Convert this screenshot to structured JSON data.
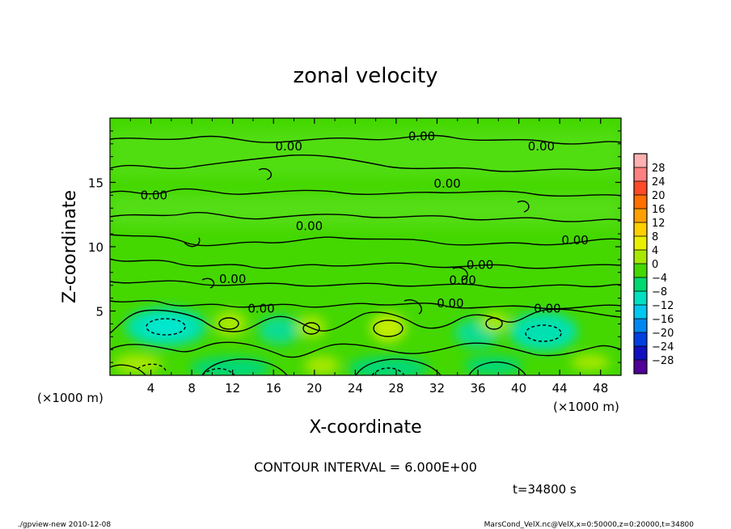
{
  "chart_data": {
    "type": "heatmap",
    "title": "zonal velocity",
    "xlabel": "X-coordinate",
    "ylabel": "Z-coordinate",
    "x_unit_label": "(×1000 m)",
    "xlim": [
      0,
      50
    ],
    "ylim": [
      0,
      20
    ],
    "x_ticks": [
      "4",
      "8",
      "12",
      "16",
      "20",
      "24",
      "28",
      "32",
      "36",
      "40",
      "44",
      "48"
    ],
    "y_ticks": [
      "5",
      "10",
      "15"
    ],
    "contour_label": "0.00",
    "contour_interval_text": "CONTOUR INTERVAL = 6.000E+00",
    "time_text": "t=34800 s",
    "colorbar": {
      "levels": [
        "28",
        "24",
        "20",
        "16",
        "12",
        "8",
        "4",
        "0",
        "−4",
        "−8",
        "−12",
        "−16",
        "−20",
        "−24",
        "−28"
      ],
      "colors": [
        "#ff8080",
        "#ff4a2a",
        "#ff7000",
        "#ffa000",
        "#ffd000",
        "#e8f000",
        "#a8e800",
        "#44d800",
        "#00d870",
        "#00e0c0",
        "#00c8f0",
        "#0088f0",
        "#0040e0",
        "#1010c0",
        "#500098"
      ]
    },
    "contour_labels": [
      {
        "x": 17.5,
        "z": 17.8
      },
      {
        "x": 30.5,
        "z": 18.6
      },
      {
        "x": 42.2,
        "z": 17.8
      },
      {
        "x": 4.3,
        "z": 14.0
      },
      {
        "x": 33.0,
        "z": 14.9
      },
      {
        "x": 19.5,
        "z": 11.6
      },
      {
        "x": 45.5,
        "z": 10.5
      },
      {
        "x": 12.0,
        "z": 7.5
      },
      {
        "x": 36.2,
        "z": 8.6
      },
      {
        "x": 34.5,
        "z": 7.4
      },
      {
        "x": 14.8,
        "z": 5.2
      },
      {
        "x": 33.3,
        "z": 5.6
      },
      {
        "x": 42.8,
        "z": 5.2
      }
    ]
  },
  "footer": {
    "left": "./gpview-new   2010-12-08",
    "right": "MarsCond_VelX.nc@VelX,x=0:50000,z=0:20000,t=34800"
  }
}
